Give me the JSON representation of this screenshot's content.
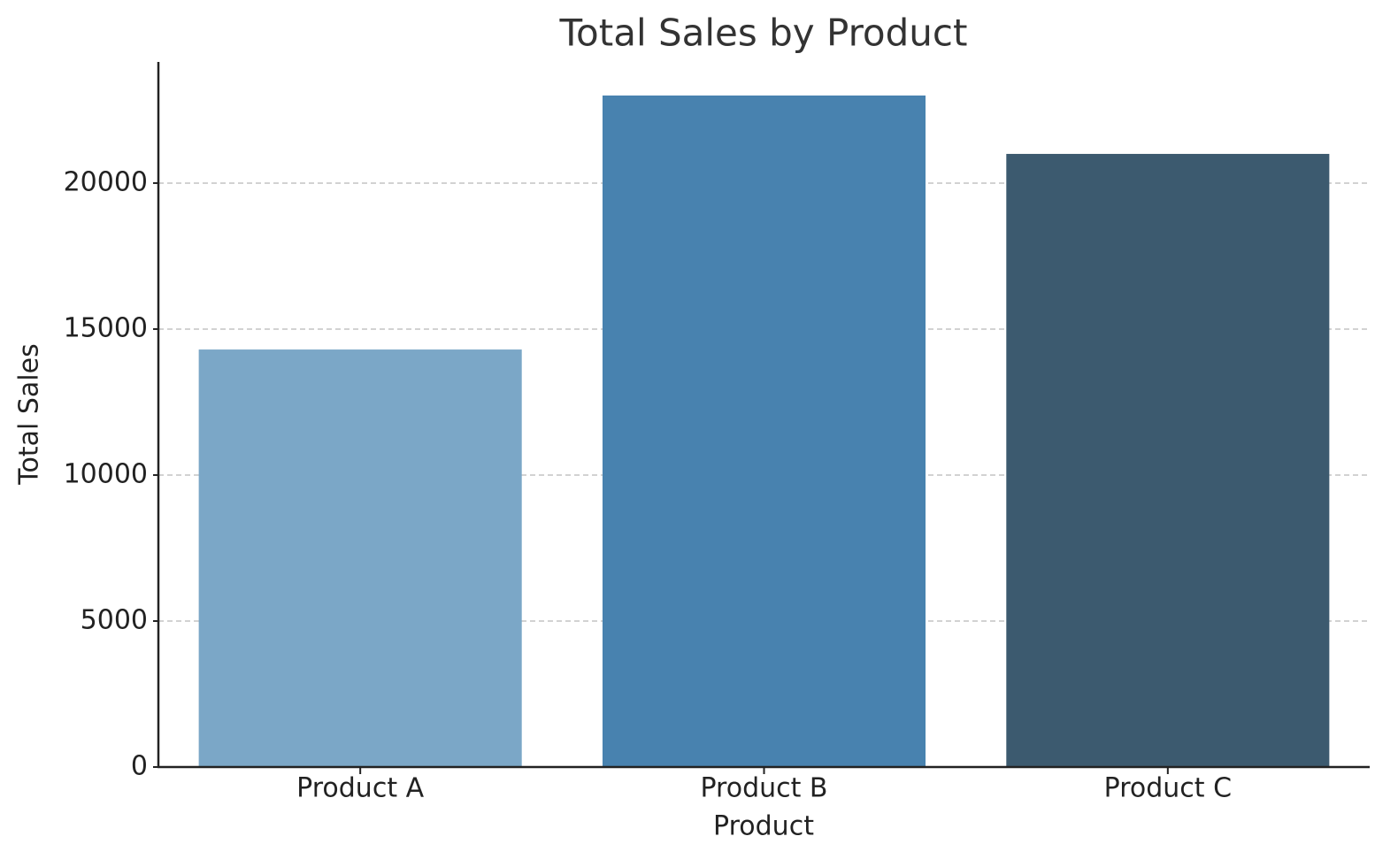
{
  "chart_data": {
    "type": "bar",
    "title": "Total Sales by Product",
    "x_label": "Product",
    "y_label": "Total Sales",
    "categories": [
      "Product A",
      "Product B",
      "Product C"
    ],
    "values": [
      14300,
      23000,
      21000
    ],
    "colors": [
      "#7ba7c7",
      "#4882af",
      "#3c5a6f"
    ],
    "ylim": [
      0,
      24150
    ],
    "yticks": [
      0,
      5000,
      10000,
      15000,
      20000
    ],
    "grid": true
  }
}
